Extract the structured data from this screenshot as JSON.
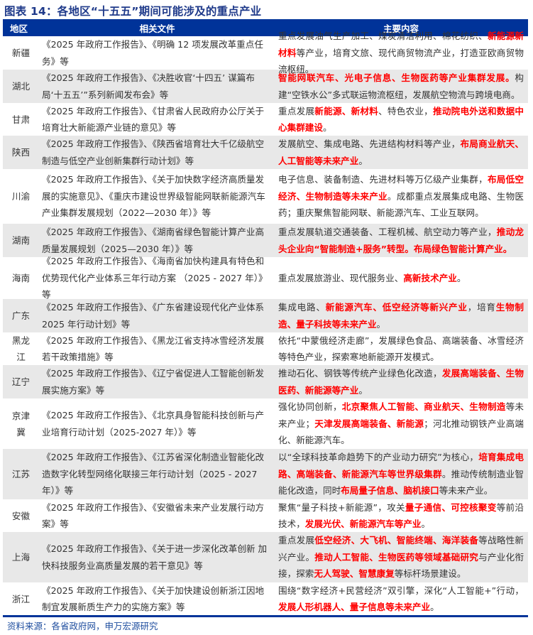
{
  "title": "图表 14：各地区“十五五”期间可能涉及的重点产业",
  "header": {
    "region": "地区",
    "docs": "相关文件",
    "content": "主要内容"
  },
  "colors": {
    "header_bg": "#003399",
    "highlight": "#ff0000",
    "row_alt": "#e8e8e8"
  },
  "rows": [
    {
      "region": "新疆",
      "docs": "《2025 年政府工作报告》、《明确 12 项发展改革重点任务》等",
      "content": [
        {
          "t": "重点发展油气生产加工、煤炭清洁利用、棉花纺织、"
        },
        {
          "t": "新能源新材料",
          "red": true
        },
        {
          "t": "等产业，培育文旅、现代商贸物流产业，打造亚欧商贸物流枢纽。"
        }
      ]
    },
    {
      "region": "湖北",
      "docs": "《2025 年政府工作报告》、《决胜收官‘十四五’ 谋篇布局‘十五五’”系列新闻发布会》等",
      "content": [
        {
          "t": "智能网联汽车、光电子信息、生物医药等产业集群发展。",
          "red": true
        },
        {
          "t": "构建“空铁水公”多式联运物流枢纽，发展航空物流与跨境电商。"
        }
      ]
    },
    {
      "region": "甘肃",
      "docs": "《2025 年政府工作报告》、《甘肃省人民政府办公厅关于培育壮大新能源产业链的意见》等",
      "content": [
        {
          "t": "重点发展"
        },
        {
          "t": "新能源、新材料",
          "red": true
        },
        {
          "t": "、特色农业，"
        },
        {
          "t": "推动院电外送和数据中心集群建设",
          "red": true
        },
        {
          "t": "。"
        }
      ]
    },
    {
      "region": "陕西",
      "docs": "《2025 年政府工作报告》、《陕西省培育壮大千亿级航空制造与低空产业创新集群行动计划》等",
      "content": [
        {
          "t": "发展航空、集成电路、先进结构材料等产业，"
        },
        {
          "t": "布局商业航天、人工智能等未来产业",
          "red": true
        },
        {
          "t": "。"
        }
      ]
    },
    {
      "region": "川渝",
      "docs": "《2025 年政府工作报告》、《关于加快数字经济高质量发展的实施意见》、《重庆市建设世界级智能网联新能源汽车产业集群发展规划（2022—2030 年）》等",
      "content": [
        {
          "t": "电子信息、装备制造、先进材料等万亿级产业集群，"
        },
        {
          "t": "布局低空经济、生物制造等未来产业",
          "red": true
        },
        {
          "t": "。成都重点发展集成电路、生物医药；重庆聚焦智能网联、新能源汽车、工业互联网。"
        }
      ]
    },
    {
      "region": "湖南",
      "docs": "《2025 年政府工作报告》、《湖南省绿色智能计算产业高质量发展规划（2025—2030 年）》等",
      "content": [
        {
          "t": "重点发展轨道交通装备、工程机械、航空动力等产业，"
        },
        {
          "t": "推动龙头企业向“智能制造+服务”转型。布局绿色智能计算产业。",
          "red": true
        }
      ]
    },
    {
      "region": "海南",
      "docs": "《2025 年政府工作报告》、《海南省加快构建具有特色和优势现代化产业体系三年行动方案 （2025 - 2027 年）》等",
      "content": [
        {
          "t": "重点发展旅游业、现代服务业、"
        },
        {
          "t": "高新技术产业",
          "red": true
        },
        {
          "t": "。"
        }
      ]
    },
    {
      "region": "广东",
      "docs": "《2025 年政府工作报告》、《广东省建设现代化产业体系 2025 年行动计划》等",
      "content": [
        {
          "t": "集成电路、"
        },
        {
          "t": "新能源汽车、低空经济等新兴产业",
          "red": true
        },
        {
          "t": "，培育"
        },
        {
          "t": "生物制造、量子科技等未来产业",
          "red": true
        },
        {
          "t": "。"
        }
      ]
    },
    {
      "region": "黑龙江",
      "docs": "《2025 年政府工作报告》、《黑龙江省支持冰雪经济发展若干政策措施》等",
      "content": [
        {
          "t": "依托“中蒙俄经济走廊”，发展绿色食品、高端装备、冰雪经济等特色产业，探索寒地新能源开发模式。"
        }
      ]
    },
    {
      "region": "辽宁",
      "docs": "《2025 年政府工作报告》、《辽宁省促进人工智能创新发展实施方案》等",
      "content": [
        {
          "t": "推动石化、钢铁等传统产业绿色化改造，"
        },
        {
          "t": "发展高端装备、生物医药、新能源等产业",
          "red": true
        },
        {
          "t": "。"
        }
      ]
    },
    {
      "region": "京津冀",
      "docs": "《2025 年政府工作报告》、《北京具身智能科技创新与产业培育行动计划（2025-2027 年）》等",
      "content": [
        {
          "t": "强化协同创新，"
        },
        {
          "t": "北京聚焦人工智能、商业航天、生物制造",
          "red": true
        },
        {
          "t": "等未来产业；"
        },
        {
          "t": "天津发展高端装备、新能源",
          "red": true
        },
        {
          "t": "；河北推动钢铁产业高端化、新能源汽车。"
        }
      ]
    },
    {
      "region": "江苏",
      "docs": "《2025 年政府工作报告》、《江苏省深化制造业智能化改造数字化转型网络化联接三年行动计划（2025 - 2027 年）》等",
      "content": [
        {
          "t": "以“全球科技革命趋势下的产业动力研究”为核心，"
        },
        {
          "t": "培育集成电路、高端装备、新能源汽车等世界级集群",
          "red": true
        },
        {
          "t": "。推动传统制造业智能化改造，同时"
        },
        {
          "t": "布局量子信息、脑机接口",
          "red": true
        },
        {
          "t": "等未来产业。"
        }
      ]
    },
    {
      "region": "安徽",
      "docs": "《2025 年政府工作报告》、《安徽省未来产业发展行动方案》等",
      "content": [
        {
          "t": "聚焦“量子科技+新能源”，攻关"
        },
        {
          "t": "量子通信、可控核聚变",
          "red": true
        },
        {
          "t": "等前沿技术，"
        },
        {
          "t": "发展光伏、新能源汽车等产业",
          "red": true
        },
        {
          "t": "。"
        }
      ]
    },
    {
      "region": "上海",
      "docs": "《2025 年政府工作报告》、《关于进一步深化改革创新 加快科技服务业高质量发展的若干意见》等",
      "content": [
        {
          "t": "重点发展"
        },
        {
          "t": "低空经济、大飞机、智能终端、海洋装备",
          "red": true
        },
        {
          "t": "等战略性新兴产业。"
        },
        {
          "t": "推动人工智能、生物医药等领域基础研究",
          "red": true
        },
        {
          "t": "与产业化衔接，探索"
        },
        {
          "t": "无人驾驶、智慧康复",
          "red": true
        },
        {
          "t": "等标杆场景建设。"
        }
      ]
    },
    {
      "region": "浙江",
      "docs": "《2025 年政府工作报告》、《关于加快建设创新浙江因地制宜发展新质生产力的实施方案》等",
      "content": [
        {
          "t": "围绕“数字经济+民营经济”双引擎，深化“人工智能+”行动，"
        },
        {
          "t": "发展人形机器人、量子信息等未来产业",
          "red": true
        },
        {
          "t": "。"
        }
      ]
    }
  ],
  "source": "资料来源：各省政府网，申万宏源研究"
}
